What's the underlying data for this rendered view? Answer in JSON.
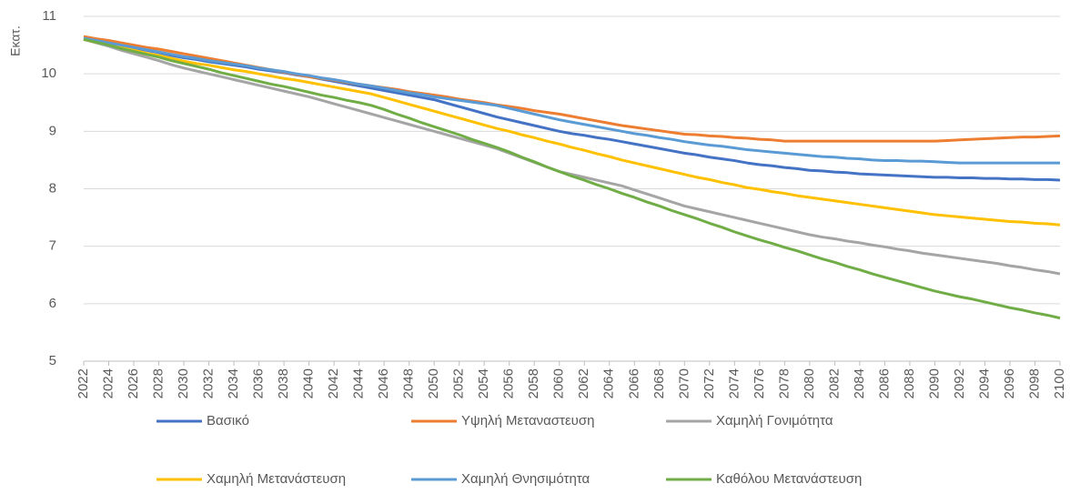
{
  "chart_data": {
    "type": "line",
    "y_label": "Εκατ.",
    "x": [
      2022,
      2023,
      2024,
      2025,
      2026,
      2027,
      2028,
      2029,
      2030,
      2031,
      2032,
      2033,
      2034,
      2035,
      2036,
      2037,
      2038,
      2039,
      2040,
      2041,
      2042,
      2043,
      2044,
      2045,
      2046,
      2047,
      2048,
      2049,
      2050,
      2051,
      2052,
      2053,
      2054,
      2055,
      2056,
      2057,
      2058,
      2059,
      2060,
      2061,
      2062,
      2063,
      2064,
      2065,
      2066,
      2067,
      2068,
      2069,
      2070,
      2071,
      2072,
      2073,
      2074,
      2075,
      2076,
      2077,
      2078,
      2079,
      2080,
      2081,
      2082,
      2083,
      2084,
      2085,
      2086,
      2087,
      2088,
      2089,
      2090,
      2091,
      2092,
      2093,
      2094,
      2095,
      2096,
      2097,
      2098,
      2099,
      2100
    ],
    "xlim": [
      2022,
      2100
    ],
    "xticks": [
      2022,
      2024,
      2026,
      2028,
      2030,
      2032,
      2034,
      2036,
      2038,
      2040,
      2042,
      2044,
      2046,
      2048,
      2050,
      2052,
      2054,
      2056,
      2058,
      2060,
      2062,
      2064,
      2066,
      2068,
      2070,
      2072,
      2074,
      2076,
      2078,
      2080,
      2082,
      2084,
      2086,
      2088,
      2090,
      2092,
      2094,
      2096,
      2098,
      2100
    ],
    "ylim": [
      5,
      11
    ],
    "yticks": [
      5,
      6,
      7,
      8,
      9,
      10,
      11
    ],
    "grid": true,
    "legend": "bottom",
    "series": [
      {
        "name": "Βασικό",
        "color": "#4472c4",
        "values": [
          10.62,
          10.58,
          10.54,
          10.49,
          10.45,
          10.41,
          10.37,
          10.32,
          10.28,
          10.25,
          10.21,
          10.18,
          10.15,
          10.12,
          10.08,
          10.05,
          10.02,
          9.98,
          9.95,
          9.91,
          9.87,
          9.83,
          9.79,
          9.75,
          9.71,
          9.67,
          9.63,
          9.59,
          9.55,
          9.49,
          9.43,
          9.37,
          9.31,
          9.25,
          9.2,
          9.15,
          9.1,
          9.05,
          9.0,
          8.96,
          8.93,
          8.89,
          8.86,
          8.82,
          8.78,
          8.74,
          8.7,
          8.66,
          8.62,
          8.59,
          8.55,
          8.52,
          8.49,
          8.45,
          8.42,
          8.4,
          8.37,
          8.35,
          8.32,
          8.31,
          8.29,
          8.28,
          8.26,
          8.25,
          8.24,
          8.23,
          8.22,
          8.21,
          8.2,
          8.2,
          8.19,
          8.19,
          8.18,
          8.18,
          8.17,
          8.17,
          8.16,
          8.16,
          8.15
        ]
      },
      {
        "name": "Υψηλή Μεταναστευση",
        "color": "#ed7d31",
        "values": [
          10.65,
          10.61,
          10.58,
          10.54,
          10.5,
          10.46,
          10.43,
          10.39,
          10.35,
          10.31,
          10.27,
          10.23,
          10.19,
          10.15,
          10.11,
          10.07,
          10.03,
          9.99,
          9.95,
          9.92,
          9.89,
          9.85,
          9.82,
          9.79,
          9.76,
          9.73,
          9.69,
          9.66,
          9.63,
          9.6,
          9.56,
          9.53,
          9.5,
          9.46,
          9.43,
          9.4,
          9.36,
          9.33,
          9.3,
          9.26,
          9.22,
          9.18,
          9.14,
          9.1,
          9.07,
          9.04,
          9.01,
          8.98,
          8.95,
          8.94,
          8.92,
          8.91,
          8.89,
          8.88,
          8.86,
          8.85,
          8.83,
          8.83,
          8.83,
          8.83,
          8.83,
          8.83,
          8.83,
          8.83,
          8.83,
          8.83,
          8.83,
          8.83,
          8.83,
          8.84,
          8.85,
          8.86,
          8.87,
          8.88,
          8.89,
          8.9,
          8.9,
          8.91,
          8.92
        ]
      },
      {
        "name": "Χαμηλή Γονιμότητα",
        "color": "#a5a5a5",
        "values": [
          10.6,
          10.54,
          10.48,
          10.41,
          10.35,
          10.29,
          10.23,
          10.16,
          10.1,
          10.05,
          10.0,
          9.95,
          9.9,
          9.85,
          9.8,
          9.75,
          9.7,
          9.65,
          9.6,
          9.54,
          9.48,
          9.42,
          9.36,
          9.3,
          9.24,
          9.18,
          9.12,
          9.06,
          9.0,
          8.94,
          8.88,
          8.82,
          8.76,
          8.7,
          8.62,
          8.54,
          8.46,
          8.38,
          8.3,
          8.25,
          8.2,
          8.15,
          8.1,
          8.05,
          7.98,
          7.91,
          7.84,
          7.77,
          7.7,
          7.65,
          7.6,
          7.55,
          7.5,
          7.45,
          7.4,
          7.35,
          7.3,
          7.25,
          7.2,
          7.16,
          7.13,
          7.09,
          7.06,
          7.02,
          6.99,
          6.95,
          6.92,
          6.88,
          6.85,
          6.82,
          6.79,
          6.76,
          6.73,
          6.7,
          6.66,
          6.63,
          6.59,
          6.56,
          6.52
        ]
      },
      {
        "name": "Χαμηλή Μετανάστευση",
        "color": "#ffc000",
        "values": [
          10.6,
          10.55,
          10.51,
          10.46,
          10.41,
          10.36,
          10.32,
          10.27,
          10.22,
          10.18,
          10.15,
          10.11,
          10.07,
          10.04,
          10.0,
          9.96,
          9.92,
          9.89,
          9.85,
          9.81,
          9.77,
          9.73,
          9.69,
          9.65,
          9.59,
          9.53,
          9.47,
          9.41,
          9.35,
          9.29,
          9.23,
          9.17,
          9.11,
          9.05,
          9.0,
          8.94,
          8.89,
          8.83,
          8.78,
          8.72,
          8.67,
          8.61,
          8.56,
          8.5,
          8.45,
          8.4,
          8.35,
          8.3,
          8.25,
          8.2,
          8.16,
          8.11,
          8.07,
          8.02,
          7.99,
          7.95,
          7.92,
          7.88,
          7.85,
          7.82,
          7.79,
          7.76,
          7.73,
          7.7,
          7.67,
          7.64,
          7.61,
          7.58,
          7.55,
          7.53,
          7.51,
          7.49,
          7.47,
          7.45,
          7.43,
          7.42,
          7.4,
          7.39,
          7.37
        ]
      },
      {
        "name": "Χαμηλή Θνησιμότητα",
        "color": "#5b9bd5",
        "values": [
          10.62,
          10.58,
          10.54,
          10.5,
          10.46,
          10.42,
          10.38,
          10.34,
          10.3,
          10.27,
          10.23,
          10.2,
          10.17,
          10.14,
          10.1,
          10.07,
          10.04,
          10.0,
          9.97,
          9.93,
          9.9,
          9.86,
          9.82,
          9.79,
          9.75,
          9.71,
          9.67,
          9.64,
          9.6,
          9.57,
          9.54,
          9.51,
          9.48,
          9.45,
          9.4,
          9.35,
          9.3,
          9.25,
          9.2,
          9.16,
          9.12,
          9.08,
          9.04,
          9.0,
          8.96,
          8.93,
          8.89,
          8.86,
          8.82,
          8.79,
          8.76,
          8.74,
          8.71,
          8.68,
          8.66,
          8.64,
          8.62,
          8.6,
          8.58,
          8.56,
          8.55,
          8.53,
          8.52,
          8.5,
          8.49,
          8.49,
          8.48,
          8.48,
          8.47,
          8.46,
          8.45,
          8.45,
          8.45,
          8.45,
          8.45,
          8.45,
          8.45,
          8.45,
          8.45
        ]
      },
      {
        "name": "Καθόλου Μετανάστευση",
        "color": "#70ad47",
        "values": [
          10.6,
          10.55,
          10.5,
          10.44,
          10.39,
          10.34,
          10.29,
          10.23,
          10.18,
          10.13,
          10.08,
          10.02,
          9.97,
          9.92,
          9.87,
          9.82,
          9.78,
          9.73,
          9.68,
          9.63,
          9.59,
          9.54,
          9.5,
          9.45,
          9.38,
          9.3,
          9.23,
          9.15,
          9.08,
          9.01,
          8.94,
          8.86,
          8.79,
          8.72,
          8.64,
          8.55,
          8.47,
          8.38,
          8.3,
          8.22,
          8.15,
          8.07,
          8.0,
          7.92,
          7.85,
          7.77,
          7.7,
          7.62,
          7.55,
          7.48,
          7.4,
          7.33,
          7.25,
          7.18,
          7.11,
          7.05,
          6.98,
          6.92,
          6.85,
          6.78,
          6.72,
          6.65,
          6.59,
          6.52,
          6.46,
          6.4,
          6.34,
          6.28,
          6.22,
          6.17,
          6.12,
          6.08,
          6.03,
          5.98,
          5.93,
          5.89,
          5.84,
          5.8,
          5.75
        ]
      }
    ]
  }
}
